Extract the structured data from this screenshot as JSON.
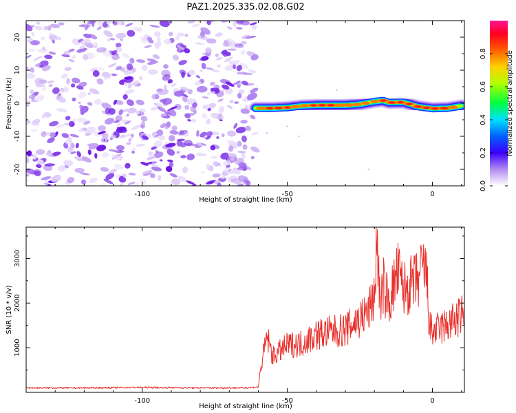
{
  "figure": {
    "title": "PAZ1.2025.335.02.08.G02"
  },
  "chart_data": [
    {
      "type": "heatmap",
      "name": "spectrogram",
      "xlabel": "Height of straight line (km)",
      "ylabel": "Frequency (Hz)",
      "xlim": [
        -140,
        11
      ],
      "ylim": [
        -25,
        25
      ],
      "xticks": [
        -100,
        -50,
        0
      ],
      "yticks": [
        -20,
        -10,
        0,
        10,
        20
      ],
      "noise_region": {
        "x_range": [
          -140,
          -61
        ],
        "y_range": [
          -25,
          25
        ],
        "level_range": [
          0.05,
          0.3
        ]
      },
      "signal_band": {
        "x": [
          -61,
          -55,
          -50,
          -45,
          -40,
          -35,
          -30,
          -25,
          -20,
          -17,
          -15,
          -10,
          -5,
          0,
          5,
          10
        ],
        "center_hz": [
          -1.5,
          -1.5,
          -1.3,
          -0.8,
          -0.6,
          -0.6,
          -0.6,
          -0.3,
          0.5,
          0.8,
          0.2,
          0.3,
          -1.0,
          -1.6,
          -1.5,
          -0.8
        ],
        "peak_amplitude": [
          0.75,
          0.95,
          0.85,
          0.7,
          0.9,
          0.9,
          0.8,
          0.75,
          0.7,
          0.85,
          0.9,
          0.85,
          0.9,
          0.95,
          0.95,
          0.6
        ]
      },
      "colorbar": {
        "label": "Normalized spectral amplitude",
        "range": [
          0,
          1
        ],
        "ticks": [
          "0.0",
          "0.2",
          "0.4",
          "0.6",
          "0.8"
        ],
        "colormap": [
          "#ffffff",
          "#8a2be2",
          "#0000ff",
          "#00ffff",
          "#00ff00",
          "#ffff00",
          "#ff8000",
          "#ff0000",
          "#ff1493"
        ]
      }
    },
    {
      "type": "line",
      "name": "snr",
      "xlabel": "Height of straight line (km)",
      "ylabel": "SNR (10 * v/v)",
      "xlim": [
        -140,
        11
      ],
      "ylim": [
        0,
        3700
      ],
      "xticks": [
        -100,
        -50,
        0
      ],
      "yticks": [
        1000,
        2000,
        3000
      ],
      "color": "#e8302b",
      "x": [
        -140,
        -120,
        -100,
        -80,
        -65,
        -60,
        -59,
        -57,
        -55,
        -50,
        -45,
        -40,
        -35,
        -30,
        -25,
        -22,
        -20,
        -19,
        -18,
        -17,
        -15,
        -12,
        -10,
        -5,
        -3,
        -2,
        -1,
        0,
        5,
        10,
        11
      ],
      "y": [
        100,
        100,
        110,
        100,
        100,
        120,
        600,
        1250,
        800,
        1050,
        1100,
        1300,
        1350,
        1400,
        1650,
        1800,
        2200,
        3500,
        1800,
        2400,
        2000,
        2700,
        2300,
        2500,
        2800,
        2600,
        1450,
        1350,
        1500,
        1700,
        1850
      ]
    }
  ]
}
